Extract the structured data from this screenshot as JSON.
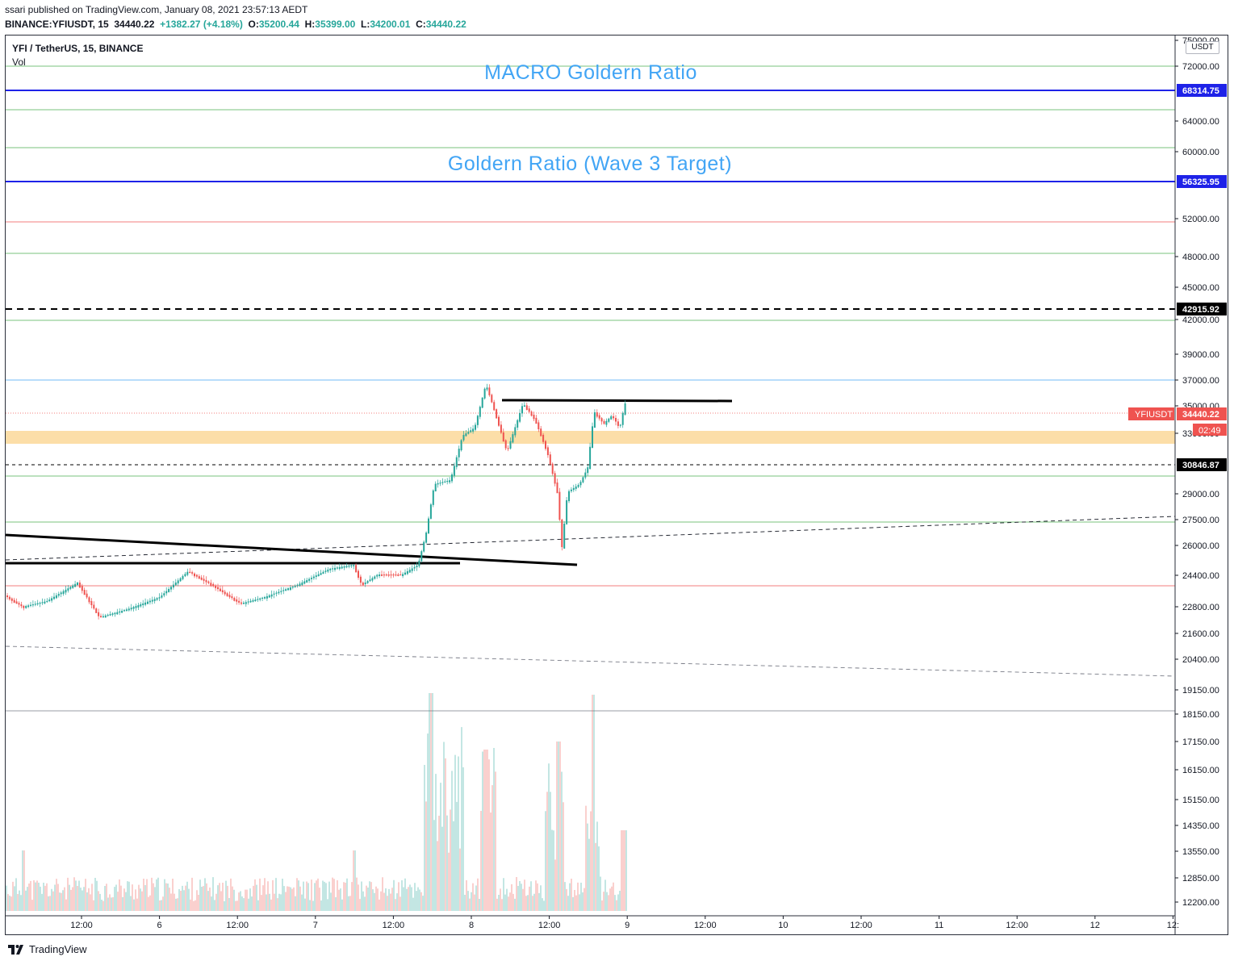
{
  "header": {
    "publish_line": "ssari published on TradingView.com, January 08, 2021 23:57:13 AEDT",
    "symbol_line": "BINANCE:YFIUSDT, 15",
    "last": "34440.22",
    "change": "+1382.27 (+4.18%)",
    "o_label": "O:",
    "o": "35200.44",
    "h_label": "H:",
    "h": "35399.00",
    "l_label": "L:",
    "l": "34200.01",
    "c_label": "C:",
    "c": "34440.22"
  },
  "legend": {
    "symbol": "YFI / TetherUS, 15, BINANCE",
    "volume": "Vol"
  },
  "currency_button": "USDT",
  "annotations": {
    "macro": "MACRO Goldern Ratio",
    "wave3": "Goldern Ratio (Wave 3 Target)"
  },
  "price_axis": {
    "ticks": [
      "75000.00",
      "72000.00",
      "64000.00",
      "60000.00",
      "52000.00",
      "48000.00",
      "45000.00",
      "42000.00",
      "39000.00",
      "37000.00",
      "35000.00",
      "33000.00",
      "29000.00",
      "27500.00",
      "26000.00",
      "24400.00",
      "22800.00",
      "21600.00",
      "20400.00",
      "19150.00",
      "18150.00",
      "17150.00",
      "16150.00",
      "15150.00",
      "14350.00",
      "13550.00",
      "12850.00",
      "12200.00"
    ],
    "badges": [
      {
        "text": "68314.75",
        "color": "#1e22e8"
      },
      {
        "text": "56325.95",
        "color": "#1e22e8"
      },
      {
        "text": "42915.92",
        "color": "#000000"
      },
      {
        "text": "30846.87",
        "color": "#000000"
      }
    ],
    "current_symbol": "YFIUSDT",
    "current_price": "34440.22",
    "countdown": "02:49",
    "current_color": "#ef5350"
  },
  "time_axis": {
    "ticks": [
      "12:00",
      "6",
      "12:00",
      "7",
      "12:00",
      "8",
      "12:00",
      "9",
      "12:00",
      "10",
      "12:00",
      "11",
      "12:00",
      "12",
      "12:"
    ]
  },
  "chart_data": {
    "type": "candlestick",
    "symbol": "YFI / TetherUS",
    "interval": "15",
    "exchange": "BINANCE",
    "last_price": 34440.22,
    "ohlc_last": {
      "open": 35200.44,
      "high": 35399.0,
      "low": 34200.01,
      "close": 34440.22
    },
    "horizontal_levels": [
      68314.75,
      56325.95,
      42915.92,
      30846.87
    ],
    "shaded_zone": "approx 32300 – 33200",
    "approx_price_path": [
      {
        "t": "Jan 5 06:00",
        "price": 23600
      },
      {
        "t": "Jan 5 12:00",
        "price": 24200
      },
      {
        "t": "Jan 5 18:00",
        "price": 22600
      },
      {
        "t": "Jan 6 06:00",
        "price": 24700
      },
      {
        "t": "Jan 6 18:00",
        "price": 23300
      },
      {
        "t": "Jan 7 06:00",
        "price": 24200
      },
      {
        "t": "Jan 7 12:00",
        "price": 24300
      },
      {
        "t": "Jan 7 18:00",
        "price": 29500
      },
      {
        "t": "Jan 8 06:00",
        "price": 36800
      },
      {
        "t": "Jan 8 12:00",
        "price": 24900
      },
      {
        "t": "Jan 8 18:00",
        "price": 34800
      },
      {
        "t": "Jan 9 00:00",
        "price": 34440
      }
    ],
    "volume_peaks": [
      "Jan 7 ~16:00",
      "Jan 8 ~20:00"
    ]
  },
  "footer": {
    "brand": "TradingView"
  },
  "colors": {
    "up": "#26a69a",
    "down": "#ef5350",
    "blue_level": "#1e22e8",
    "annotation_text": "#42a5f5",
    "zone": "#fcd899"
  }
}
